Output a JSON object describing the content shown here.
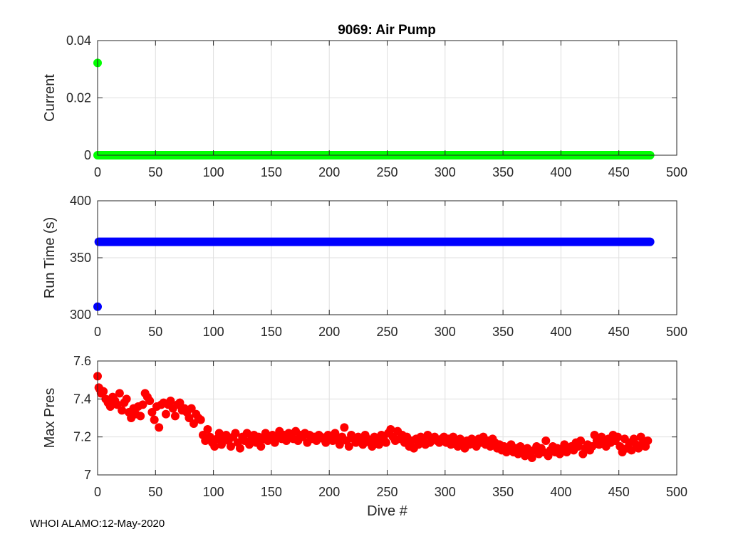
{
  "figure": {
    "title": "9069: Air Pump",
    "footer": "WHOI ALAMO:12-May-2020"
  },
  "chart_data": [
    {
      "type": "scatter",
      "ylabel": "Current",
      "xlabel": "",
      "xlim": [
        0,
        500
      ],
      "ylim": [
        0,
        0.04
      ],
      "xticks": [
        "0",
        "50",
        "100",
        "150",
        "200",
        "250",
        "300",
        "350",
        "400",
        "450",
        "500"
      ],
      "yticks": [
        "0",
        "0.02",
        "0.04"
      ],
      "grid": true,
      "color": "#00ff00",
      "points": [
        [
          0,
          0.0322
        ]
      ],
      "baseline": {
        "x_range": [
          0,
          477
        ],
        "y": 0
      }
    },
    {
      "type": "scatter",
      "ylabel": "Run Time (s)",
      "xlabel": "",
      "xlim": [
        0,
        500
      ],
      "ylim": [
        300,
        400
      ],
      "xticks": [
        "0",
        "50",
        "100",
        "150",
        "200",
        "250",
        "300",
        "350",
        "400",
        "450",
        "500"
      ],
      "yticks": [
        "300",
        "350",
        "400"
      ],
      "grid": true,
      "color": "#0000ff",
      "points": [
        [
          0,
          307
        ]
      ],
      "baseline": {
        "x_range": [
          1,
          477
        ],
        "y": 364
      }
    },
    {
      "type": "scatter",
      "ylabel": "Max Pres",
      "xlabel": "Dive #",
      "xlim": [
        0,
        500
      ],
      "ylim": [
        7,
        7.6
      ],
      "xticks": [
        "0",
        "50",
        "100",
        "150",
        "200",
        "250",
        "300",
        "350",
        "400",
        "450",
        "500"
      ],
      "yticks": [
        "7",
        "7.2",
        "7.4",
        "7.6"
      ],
      "grid": true,
      "color": "#ff0000",
      "points": [
        [
          0,
          7.52
        ],
        [
          1,
          7.46
        ],
        [
          2,
          7.45
        ],
        [
          3,
          7.43
        ],
        [
          5,
          7.44
        ],
        [
          7,
          7.4
        ],
        [
          9,
          7.38
        ],
        [
          11,
          7.36
        ],
        [
          13,
          7.41
        ],
        [
          15,
          7.39
        ],
        [
          17,
          7.37
        ],
        [
          19,
          7.43
        ],
        [
          21,
          7.34
        ],
        [
          23,
          7.38
        ],
        [
          25,
          7.4
        ],
        [
          27,
          7.33
        ],
        [
          29,
          7.3
        ],
        [
          31,
          7.35
        ],
        [
          33,
          7.32
        ],
        [
          35,
          7.36
        ],
        [
          37,
          7.31
        ],
        [
          39,
          7.37
        ],
        [
          41,
          7.43
        ],
        [
          43,
          7.41
        ],
        [
          45,
          7.39
        ],
        [
          47,
          7.33
        ],
        [
          49,
          7.29
        ],
        [
          51,
          7.36
        ],
        [
          53,
          7.25
        ],
        [
          55,
          7.37
        ],
        [
          57,
          7.38
        ],
        [
          59,
          7.32
        ],
        [
          61,
          7.37
        ],
        [
          63,
          7.39
        ],
        [
          65,
          7.35
        ],
        [
          67,
          7.31
        ],
        [
          69,
          7.37
        ],
        [
          71,
          7.38
        ],
        [
          73,
          7.34
        ],
        [
          75,
          7.35
        ],
        [
          77,
          7.33
        ],
        [
          79,
          7.3
        ],
        [
          81,
          7.35
        ],
        [
          83,
          7.27
        ],
        [
          85,
          7.32
        ],
        [
          87,
          7.3
        ],
        [
          89,
          7.29
        ],
        [
          91,
          7.21
        ],
        [
          93,
          7.18
        ],
        [
          95,
          7.24
        ],
        [
          97,
          7.2
        ],
        [
          99,
          7.17
        ],
        [
          101,
          7.15
        ],
        [
          103,
          7.19
        ],
        [
          105,
          7.22
        ],
        [
          107,
          7.16
        ],
        [
          109,
          7.19
        ],
        [
          111,
          7.21
        ],
        [
          113,
          7.18
        ],
        [
          115,
          7.15
        ],
        [
          117,
          7.2
        ],
        [
          119,
          7.22
        ],
        [
          121,
          7.17
        ],
        [
          123,
          7.14
        ],
        [
          125,
          7.2
        ],
        [
          127,
          7.18
        ],
        [
          129,
          7.22
        ],
        [
          131,
          7.16
        ],
        [
          133,
          7.19
        ],
        [
          135,
          7.21
        ],
        [
          137,
          7.17
        ],
        [
          139,
          7.2
        ],
        [
          141,
          7.15
        ],
        [
          143,
          7.19
        ],
        [
          145,
          7.22
        ],
        [
          147,
          7.18
        ],
        [
          149,
          7.2
        ],
        [
          151,
          7.21
        ],
        [
          153,
          7.17
        ],
        [
          155,
          7.2
        ],
        [
          157,
          7.23
        ],
        [
          159,
          7.19
        ],
        [
          161,
          7.21
        ],
        [
          163,
          7.18
        ],
        [
          165,
          7.22
        ],
        [
          167,
          7.2
        ],
        [
          169,
          7.19
        ],
        [
          171,
          7.23
        ],
        [
          173,
          7.18
        ],
        [
          175,
          7.21
        ],
        [
          177,
          7.2
        ],
        [
          179,
          7.22
        ],
        [
          181,
          7.17
        ],
        [
          183,
          7.21
        ],
        [
          185,
          7.19
        ],
        [
          187,
          7.2
        ],
        [
          189,
          7.18
        ],
        [
          191,
          7.21
        ],
        [
          193,
          7.2
        ],
        [
          195,
          7.19
        ],
        [
          197,
          7.17
        ],
        [
          199,
          7.21
        ],
        [
          201,
          7.2
        ],
        [
          203,
          7.18
        ],
        [
          205,
          7.22
        ],
        [
          207,
          7.19
        ],
        [
          209,
          7.16
        ],
        [
          211,
          7.2
        ],
        [
          213,
          7.25
        ],
        [
          215,
          7.18
        ],
        [
          217,
          7.15
        ],
        [
          219,
          7.21
        ],
        [
          221,
          7.19
        ],
        [
          223,
          7.17
        ],
        [
          225,
          7.2
        ],
        [
          227,
          7.18
        ],
        [
          229,
          7.16
        ],
        [
          231,
          7.21
        ],
        [
          233,
          7.19
        ],
        [
          235,
          7.17
        ],
        [
          237,
          7.15
        ],
        [
          239,
          7.2
        ],
        [
          241,
          7.18
        ],
        [
          243,
          7.16
        ],
        [
          245,
          7.21
        ],
        [
          247,
          7.19
        ],
        [
          249,
          7.17
        ],
        [
          251,
          7.22
        ],
        [
          253,
          7.24
        ],
        [
          255,
          7.2
        ],
        [
          257,
          7.18
        ],
        [
          259,
          7.23
        ],
        [
          261,
          7.19
        ],
        [
          263,
          7.21
        ],
        [
          265,
          7.17
        ],
        [
          267,
          7.2
        ],
        [
          269,
          7.15
        ],
        [
          271,
          7.18
        ],
        [
          273,
          7.14
        ],
        [
          275,
          7.19
        ],
        [
          277,
          7.16
        ],
        [
          279,
          7.2
        ],
        [
          281,
          7.18
        ],
        [
          283,
          7.16
        ],
        [
          285,
          7.21
        ],
        [
          287,
          7.17
        ],
        [
          289,
          7.19
        ],
        [
          291,
          7.2
        ],
        [
          293,
          7.18
        ],
        [
          295,
          7.17
        ],
        [
          297,
          7.19
        ],
        [
          299,
          7.2
        ],
        [
          301,
          7.17
        ],
        [
          303,
          7.19
        ],
        [
          305,
          7.16
        ],
        [
          307,
          7.2
        ],
        [
          309,
          7.18
        ],
        [
          311,
          7.15
        ],
        [
          313,
          7.19
        ],
        [
          315,
          7.17
        ],
        [
          317,
          7.14
        ],
        [
          319,
          7.18
        ],
        [
          321,
          7.16
        ],
        [
          323,
          7.19
        ],
        [
          325,
          7.17
        ],
        [
          327,
          7.15
        ],
        [
          329,
          7.19
        ],
        [
          331,
          7.17
        ],
        [
          333,
          7.2
        ],
        [
          335,
          7.16
        ],
        [
          337,
          7.18
        ],
        [
          339,
          7.15
        ],
        [
          341,
          7.19
        ],
        [
          343,
          7.17
        ],
        [
          345,
          7.14
        ],
        [
          347,
          7.16
        ],
        [
          349,
          7.13
        ],
        [
          351,
          7.15
        ],
        [
          353,
          7.12
        ],
        [
          355,
          7.14
        ],
        [
          357,
          7.16
        ],
        [
          359,
          7.12
        ],
        [
          361,
          7.14
        ],
        [
          363,
          7.11
        ],
        [
          365,
          7.15
        ],
        [
          367,
          7.13
        ],
        [
          369,
          7.1
        ],
        [
          371,
          7.14
        ],
        [
          373,
          7.12
        ],
        [
          375,
          7.09
        ],
        [
          377,
          7.13
        ],
        [
          379,
          7.15
        ],
        [
          381,
          7.11
        ],
        [
          383,
          7.14
        ],
        [
          385,
          7.12
        ],
        [
          387,
          7.18
        ],
        [
          389,
          7.1
        ],
        [
          391,
          7.13
        ],
        [
          393,
          7.15
        ],
        [
          395,
          7.12
        ],
        [
          397,
          7.14
        ],
        [
          399,
          7.11
        ],
        [
          401,
          7.13
        ],
        [
          403,
          7.16
        ],
        [
          405,
          7.12
        ],
        [
          407,
          7.14
        ],
        [
          409,
          7.15
        ],
        [
          411,
          7.13
        ],
        [
          413,
          7.17
        ],
        [
          415,
          7.15
        ],
        [
          417,
          7.18
        ],
        [
          419,
          7.11
        ],
        [
          421,
          7.14
        ],
        [
          423,
          7.16
        ],
        [
          425,
          7.13
        ],
        [
          427,
          7.15
        ],
        [
          429,
          7.21
        ],
        [
          431,
          7.18
        ],
        [
          433,
          7.16
        ],
        [
          435,
          7.2
        ],
        [
          437,
          7.17
        ],
        [
          439,
          7.15
        ],
        [
          441,
          7.19
        ],
        [
          443,
          7.17
        ],
        [
          445,
          7.21
        ],
        [
          447,
          7.18
        ],
        [
          449,
          7.2
        ],
        [
          451,
          7.15
        ],
        [
          453,
          7.12
        ],
        [
          455,
          7.19
        ],
        [
          457,
          7.14
        ],
        [
          459,
          7.17
        ],
        [
          461,
          7.13
        ],
        [
          463,
          7.19
        ],
        [
          465,
          7.16
        ],
        [
          467,
          7.14
        ],
        [
          469,
          7.2
        ],
        [
          471,
          7.17
        ],
        [
          473,
          7.15
        ],
        [
          475,
          7.18
        ]
      ]
    }
  ]
}
